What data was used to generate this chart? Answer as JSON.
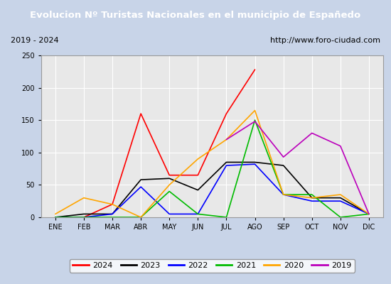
{
  "title": "Evolucion Nº Turistas Nacionales en el municipio de Españedo",
  "subtitle_left": "2019 - 2024",
  "subtitle_right": "http://www.foro-ciudad.com",
  "months": [
    "ENE",
    "FEB",
    "MAR",
    "ABR",
    "MAY",
    "JUN",
    "JUL",
    "AGO",
    "SEP",
    "OCT",
    "NOV",
    "DIC"
  ],
  "series": {
    "2024": [
      0,
      0,
      20,
      160,
      65,
      65,
      160,
      228,
      null,
      null,
      null,
      null
    ],
    "2023": [
      0,
      5,
      5,
      58,
      60,
      42,
      85,
      85,
      80,
      30,
      30,
      5
    ],
    "2022": [
      0,
      0,
      5,
      47,
      5,
      5,
      80,
      82,
      35,
      25,
      25,
      5
    ],
    "2021": [
      0,
      0,
      0,
      0,
      40,
      5,
      0,
      150,
      35,
      35,
      0,
      5
    ],
    "2020": [
      5,
      30,
      20,
      0,
      50,
      90,
      120,
      165,
      35,
      30,
      35,
      5
    ],
    "2019": [
      null,
      null,
      null,
      null,
      null,
      null,
      120,
      148,
      93,
      130,
      110,
      5
    ]
  },
  "colors": {
    "2024": "#ff0000",
    "2023": "#000000",
    "2022": "#0000ff",
    "2021": "#00bb00",
    "2020": "#ffa500",
    "2019": "#bb00bb"
  },
  "ylim": [
    0,
    250
  ],
  "yticks": [
    0,
    50,
    100,
    150,
    200,
    250
  ],
  "title_bg": "#4472c4",
  "title_color": "#ffffff",
  "plot_bg": "#e8e8e8",
  "outer_bg": "#c8d4e8",
  "subtitle_bg": "#f0f0f0"
}
